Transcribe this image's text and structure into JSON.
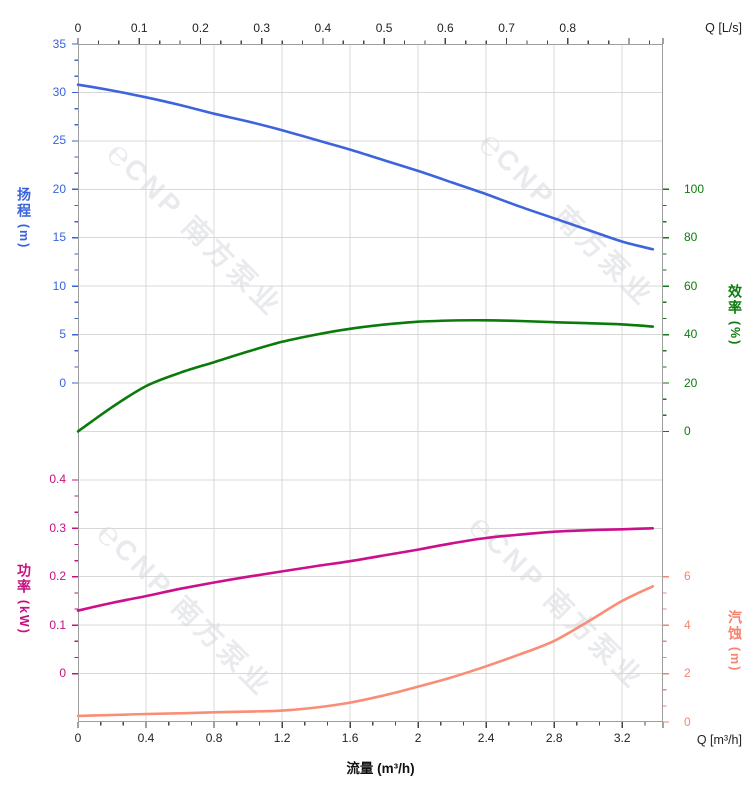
{
  "watermark": {
    "logo_icon": "℮",
    "text": "CNP 南方泵业"
  },
  "chart_data": {
    "type": "line",
    "title": "",
    "x_axis_bottom": {
      "title": "流量 (m³/h)",
      "corner_label": "Q [m³/h]",
      "tick_values": [
        0,
        0.4,
        0.8,
        1.2,
        1.6,
        2,
        2.4,
        2.8,
        3.2
      ],
      "tick_labels": [
        "0",
        "0.4",
        "0.8",
        "1.2",
        "1.6",
        "2",
        "2.4",
        "2.8",
        "3.2"
      ],
      "range": [
        0,
        3.44
      ],
      "color": "#222222"
    },
    "x_axis_top": {
      "corner_label": "Q [L/s]",
      "tick_values": [
        0,
        0.1,
        0.2,
        0.3,
        0.4,
        0.5,
        0.6,
        0.7,
        0.8,
        0.9
      ],
      "tick_labels": [
        "0",
        "0.1",
        "0.2",
        "0.3",
        "0.4",
        "0.5",
        "0.6",
        "0.7",
        "0.8",
        ""
      ],
      "range": [
        0,
        0.9556
      ],
      "color": "#222222"
    },
    "y_axes": [
      {
        "id": "head",
        "name": "扬程",
        "unit": "(m)",
        "side": "left",
        "color": "#3A62DD",
        "tick_values": [
          35,
          30,
          25,
          20,
          15,
          10,
          5,
          0
        ],
        "tick_labels": [
          "35",
          "30",
          "25",
          "20",
          "15",
          "10",
          "5",
          "0"
        ]
      },
      {
        "id": "eff",
        "name": "效率",
        "unit": "(%)",
        "side": "right",
        "color": "#0E7C0E",
        "tick_values": [
          100,
          80,
          60,
          40,
          20,
          0
        ],
        "tick_labels": [
          "100",
          "80",
          "60",
          "40",
          "20",
          "0"
        ]
      },
      {
        "id": "power",
        "name": "功率",
        "unit": "(kW)",
        "side": "left",
        "color": "#C5117F",
        "tick_values": [
          0.4,
          0.3,
          0.2,
          0.1,
          0
        ],
        "tick_labels": [
          "0.4",
          "0.3",
          "0.2",
          "0.1",
          "0"
        ]
      },
      {
        "id": "npsh",
        "name": "汽蚀",
        "unit": "(m)",
        "side": "right",
        "color": "#F8836E",
        "tick_values": [
          6,
          4,
          2,
          0
        ],
        "tick_labels": [
          "6",
          "4",
          "2",
          "0"
        ]
      }
    ],
    "x_m3h": [
      0,
      0.2,
      0.4,
      0.6,
      0.8,
      1,
      1.2,
      1.4,
      1.6,
      1.8,
      2,
      2.2,
      2.4,
      2.6,
      2.8,
      3,
      3.2,
      3.38
    ],
    "series": [
      {
        "name": "head_m",
        "axis": "head",
        "color": "#3D64DC",
        "values": [
          30.8,
          30.2,
          29.5,
          28.7,
          27.8,
          27,
          26.1,
          25.1,
          24.1,
          23,
          21.9,
          20.7,
          19.5,
          18.2,
          17,
          15.8,
          14.6,
          13.8
        ]
      },
      {
        "name": "efficiency_pct",
        "axis": "eff",
        "color": "#0A7A0A",
        "values": [
          0,
          10,
          18.7,
          24.2,
          28.6,
          33,
          37,
          40,
          42.4,
          44.1,
          45.3,
          45.8,
          45.9,
          45.6,
          45.1,
          44.7,
          44.2,
          43.3
        ]
      },
      {
        "name": "power_kW",
        "axis": "power",
        "color": "#CC0F8B",
        "values": [
          0.13,
          0.146,
          0.16,
          0.175,
          0.188,
          0.2,
          0.211,
          0.222,
          0.232,
          0.244,
          0.256,
          0.269,
          0.28,
          0.287,
          0.293,
          0.296,
          0.298,
          0.3
        ]
      },
      {
        "name": "npsh_m",
        "axis": "npsh",
        "color": "#F98D75",
        "values": [
          0.25,
          0.29,
          0.33,
          0.36,
          0.4,
          0.43,
          0.47,
          0.6,
          0.8,
          1.1,
          1.46,
          1.85,
          2.3,
          2.8,
          3.35,
          4.15,
          5,
          5.6
        ]
      }
    ],
    "grid": {
      "color": "#D8D8D8",
      "border_color": "#9E9E9E"
    },
    "legend": "none"
  }
}
